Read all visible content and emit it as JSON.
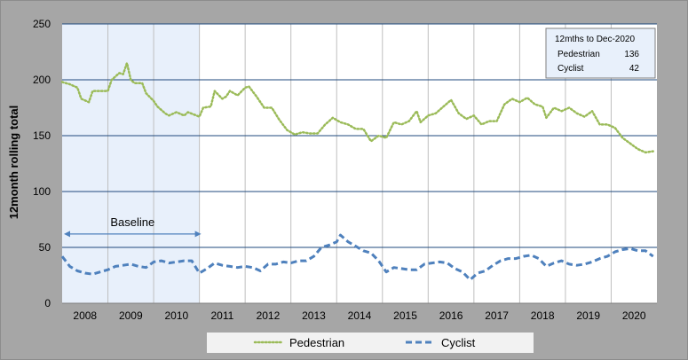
{
  "chart_data": {
    "type": "line",
    "title": "",
    "xlabel": "",
    "ylabel": "12month rolling total",
    "ylim": [
      0,
      250
    ],
    "yticks": [
      "0",
      "50",
      "100",
      "150",
      "200",
      "250"
    ],
    "year_labels": [
      "2008",
      "2009",
      "2010",
      "2011",
      "2012",
      "2013",
      "2014",
      "2015",
      "2016",
      "2017",
      "2018",
      "2019",
      "2020"
    ],
    "x_start": "2008-01",
    "x_end": "2020-12",
    "grid": true,
    "legend": "bottom",
    "baseline": {
      "label": "Baseline",
      "start": "2008-01",
      "end": "2011-01"
    },
    "info_box": {
      "title": "12mths to Dec-2020",
      "rows": [
        {
          "name": "Pedestrian",
          "value": "136"
        },
        {
          "name": "Cyclist",
          "value": "42"
        }
      ]
    },
    "series": [
      {
        "name": "Pedestrian",
        "color": "#9bbb59",
        "style": "dotted",
        "points": [
          [
            "2008-01",
            198
          ],
          [
            "2008-03",
            196
          ],
          [
            "2008-05",
            193
          ],
          [
            "2008-06",
            183
          ],
          [
            "2008-08",
            180
          ],
          [
            "2008-09",
            190
          ],
          [
            "2008-11",
            190
          ],
          [
            "2009-01",
            190
          ],
          [
            "2009-02",
            200
          ],
          [
            "2009-04",
            206
          ],
          [
            "2009-05",
            205
          ],
          [
            "2009-06",
            215
          ],
          [
            "2009-07",
            200
          ],
          [
            "2009-08",
            197
          ],
          [
            "2009-10",
            197
          ],
          [
            "2009-11",
            188
          ],
          [
            "2010-01",
            181
          ],
          [
            "2010-02",
            176
          ],
          [
            "2010-04",
            170
          ],
          [
            "2010-05",
            168
          ],
          [
            "2010-07",
            171
          ],
          [
            "2010-09",
            168
          ],
          [
            "2010-10",
            171
          ],
          [
            "2011-01",
            167
          ],
          [
            "2011-02",
            175
          ],
          [
            "2011-04",
            176
          ],
          [
            "2011-05",
            190
          ],
          [
            "2011-07",
            183
          ],
          [
            "2011-08",
            185
          ],
          [
            "2011-09",
            190
          ],
          [
            "2011-11",
            186
          ],
          [
            "2012-01",
            193
          ],
          [
            "2012-02",
            194
          ],
          [
            "2012-04",
            185
          ],
          [
            "2012-06",
            175
          ],
          [
            "2012-08",
            175
          ],
          [
            "2012-10",
            164
          ],
          [
            "2012-12",
            155
          ],
          [
            "2013-02",
            151
          ],
          [
            "2013-04",
            153
          ],
          [
            "2013-06",
            152
          ],
          [
            "2013-08",
            152
          ],
          [
            "2013-10",
            160
          ],
          [
            "2013-12",
            166
          ],
          [
            "2014-02",
            162
          ],
          [
            "2014-04",
            160
          ],
          [
            "2014-06",
            156
          ],
          [
            "2014-08",
            156
          ],
          [
            "2014-10",
            145
          ],
          [
            "2014-12",
            150
          ],
          [
            "2015-02",
            148
          ],
          [
            "2015-04",
            162
          ],
          [
            "2015-06",
            160
          ],
          [
            "2015-08",
            163
          ],
          [
            "2015-10",
            172
          ],
          [
            "2015-11",
            162
          ],
          [
            "2016-01",
            168
          ],
          [
            "2016-03",
            170
          ],
          [
            "2016-05",
            176
          ],
          [
            "2016-07",
            182
          ],
          [
            "2016-09",
            170
          ],
          [
            "2016-11",
            165
          ],
          [
            "2017-01",
            168
          ],
          [
            "2017-03",
            160
          ],
          [
            "2017-05",
            163
          ],
          [
            "2017-07",
            163
          ],
          [
            "2017-09",
            178
          ],
          [
            "2017-11",
            183
          ],
          [
            "2018-01",
            180
          ],
          [
            "2018-03",
            184
          ],
          [
            "2018-05",
            178
          ],
          [
            "2018-07",
            176
          ],
          [
            "2018-08",
            166
          ],
          [
            "2018-10",
            175
          ],
          [
            "2018-12",
            172
          ],
          [
            "2019-02",
            175
          ],
          [
            "2019-04",
            170
          ],
          [
            "2019-06",
            167
          ],
          [
            "2019-08",
            172
          ],
          [
            "2019-10",
            160
          ],
          [
            "2019-12",
            160
          ],
          [
            "2020-02",
            157
          ],
          [
            "2020-04",
            148
          ],
          [
            "2020-06",
            143
          ],
          [
            "2020-08",
            138
          ],
          [
            "2020-10",
            135
          ],
          [
            "2020-12",
            136
          ]
        ]
      },
      {
        "name": "Cyclist",
        "color": "#4f81bd",
        "style": "dashed",
        "points": [
          [
            "2008-01",
            42
          ],
          [
            "2008-03",
            33
          ],
          [
            "2008-05",
            29
          ],
          [
            "2008-07",
            27
          ],
          [
            "2008-09",
            26
          ],
          [
            "2008-11",
            28
          ],
          [
            "2009-01",
            30
          ],
          [
            "2009-03",
            33
          ],
          [
            "2009-05",
            34
          ],
          [
            "2009-07",
            35
          ],
          [
            "2009-09",
            33
          ],
          [
            "2009-11",
            32
          ],
          [
            "2010-01",
            37
          ],
          [
            "2010-03",
            38
          ],
          [
            "2010-05",
            36
          ],
          [
            "2010-07",
            37
          ],
          [
            "2010-09",
            38
          ],
          [
            "2010-11",
            38
          ],
          [
            "2011-01",
            27
          ],
          [
            "2011-03",
            31
          ],
          [
            "2011-05",
            36
          ],
          [
            "2011-07",
            34
          ],
          [
            "2011-09",
            33
          ],
          [
            "2011-11",
            32
          ],
          [
            "2012-01",
            33
          ],
          [
            "2012-03",
            32
          ],
          [
            "2012-05",
            29
          ],
          [
            "2012-07",
            35
          ],
          [
            "2012-09",
            35
          ],
          [
            "2012-11",
            37
          ],
          [
            "2013-01",
            36
          ],
          [
            "2013-03",
            38
          ],
          [
            "2013-05",
            38
          ],
          [
            "2013-07",
            42
          ],
          [
            "2013-09",
            50
          ],
          [
            "2013-11",
            52
          ],
          [
            "2014-01",
            55
          ],
          [
            "2014-02",
            61
          ],
          [
            "2014-04",
            55
          ],
          [
            "2014-06",
            51
          ],
          [
            "2014-08",
            47
          ],
          [
            "2014-10",
            45
          ],
          [
            "2014-12",
            38
          ],
          [
            "2015-02",
            28
          ],
          [
            "2015-04",
            32
          ],
          [
            "2015-06",
            31
          ],
          [
            "2015-08",
            30
          ],
          [
            "2015-10",
            30
          ],
          [
            "2015-12",
            35
          ],
          [
            "2016-02",
            36
          ],
          [
            "2016-04",
            37
          ],
          [
            "2016-06",
            36
          ],
          [
            "2016-08",
            31
          ],
          [
            "2016-10",
            28
          ],
          [
            "2016-12",
            21
          ],
          [
            "2017-02",
            27
          ],
          [
            "2017-04",
            29
          ],
          [
            "2017-06",
            34
          ],
          [
            "2017-08",
            38
          ],
          [
            "2017-10",
            40
          ],
          [
            "2017-12",
            40
          ],
          [
            "2018-02",
            42
          ],
          [
            "2018-04",
            43
          ],
          [
            "2018-06",
            40
          ],
          [
            "2018-08",
            33
          ],
          [
            "2018-10",
            36
          ],
          [
            "2018-12",
            38
          ],
          [
            "2019-02",
            35
          ],
          [
            "2019-04",
            34
          ],
          [
            "2019-06",
            35
          ],
          [
            "2019-08",
            37
          ],
          [
            "2019-10",
            40
          ],
          [
            "2019-12",
            42
          ],
          [
            "2020-02",
            46
          ],
          [
            "2020-04",
            48
          ],
          [
            "2020-06",
            49
          ],
          [
            "2020-08",
            47
          ],
          [
            "2020-10",
            47
          ],
          [
            "2020-12",
            42
          ]
        ]
      }
    ]
  }
}
